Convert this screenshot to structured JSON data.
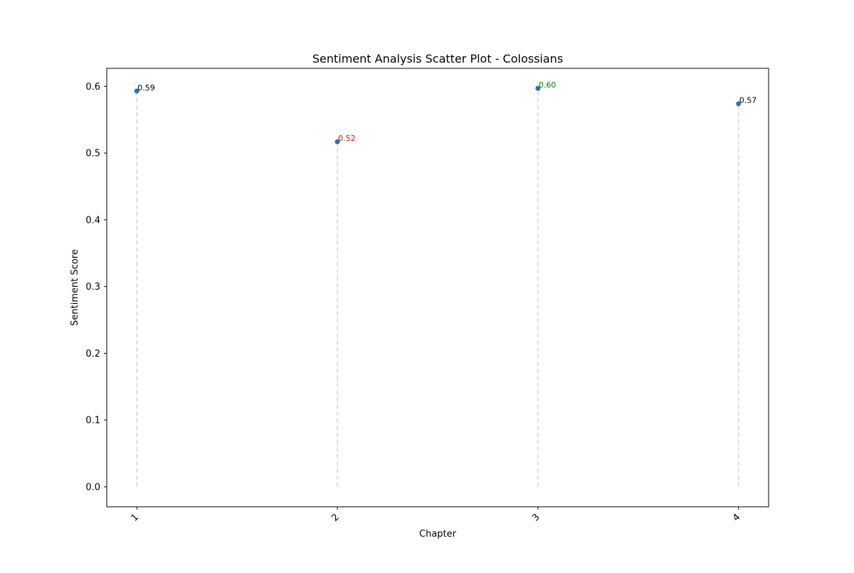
{
  "chart_data": {
    "type": "scatter",
    "title": "Sentiment Analysis Scatter Plot - Colossians",
    "xlabel": "Chapter",
    "ylabel": "Sentiment Score",
    "categories": [
      "1",
      "2",
      "3",
      "4"
    ],
    "values": [
      0.593,
      0.517,
      0.597,
      0.574
    ],
    "point_labels": [
      "0.59",
      "0.52",
      "0.60",
      "0.57"
    ],
    "label_colors": [
      "#000000",
      "#ff0000",
      "#008000",
      "#000000"
    ],
    "ylim": [
      -0.03,
      0.627
    ],
    "yticks": [
      0.0,
      0.1,
      0.2,
      0.3,
      0.4,
      0.5,
      0.6
    ],
    "ytick_labels": [
      "0.0",
      "0.1",
      "0.2",
      "0.3",
      "0.4",
      "0.5",
      "0.6"
    ],
    "xlim": [
      0.85,
      4.15
    ],
    "grid": false,
    "stems": true,
    "marker_color": "#1f77b4",
    "stem_color": "#d3d3d3"
  }
}
